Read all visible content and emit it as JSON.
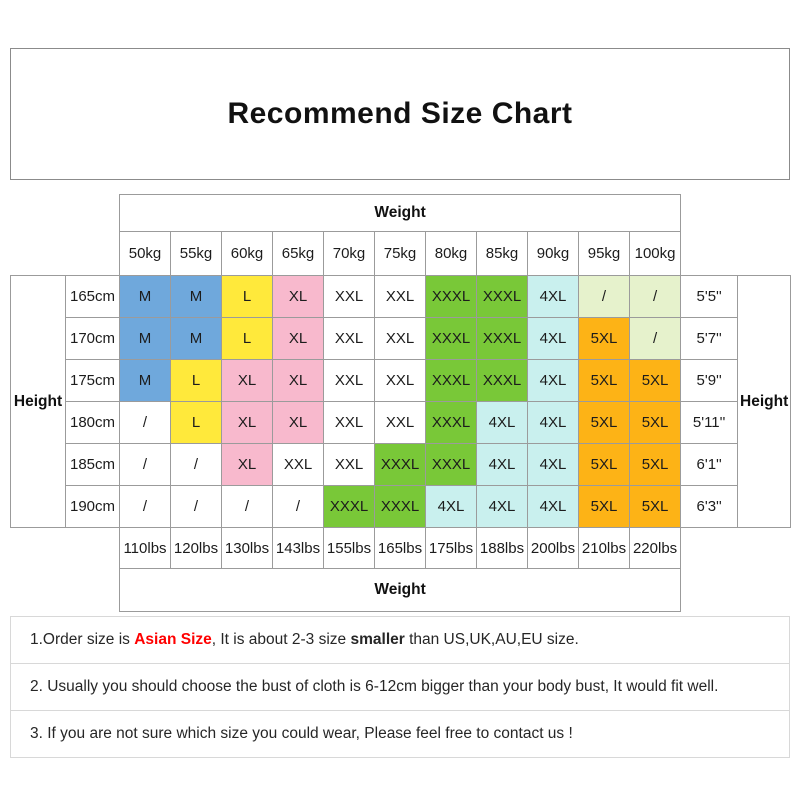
{
  "title": "Recommend Size Chart",
  "chart_data": {
    "type": "table",
    "title": "Recommend Size Chart",
    "axis_labels": {
      "top": "Weight",
      "bottom": "Weight",
      "left": "Height",
      "right": "Height"
    },
    "weight_kg": [
      "50kg",
      "55kg",
      "60kg",
      "65kg",
      "70kg",
      "75kg",
      "80kg",
      "85kg",
      "90kg",
      "95kg",
      "100kg"
    ],
    "weight_lbs": [
      "110lbs",
      "120lbs",
      "130lbs",
      "143lbs",
      "155lbs",
      "165lbs",
      "175lbs",
      "188lbs",
      "200lbs",
      "210lbs",
      "220lbs"
    ],
    "rows": [
      {
        "height_cm": "165cm",
        "height_ft": "5'5''",
        "cells": [
          [
            "M",
            "blue"
          ],
          [
            "M",
            "blue"
          ],
          [
            "L",
            "yellow"
          ],
          [
            "XL",
            "pink"
          ],
          [
            "XXL",
            "white"
          ],
          [
            "XXL",
            "white"
          ],
          [
            "XXXL",
            "green"
          ],
          [
            "XXXL",
            "green"
          ],
          [
            "4XL",
            "cyan"
          ],
          [
            "/",
            "pale"
          ],
          [
            "/",
            "pale"
          ]
        ]
      },
      {
        "height_cm": "170cm",
        "height_ft": "5'7''",
        "cells": [
          [
            "M",
            "blue"
          ],
          [
            "M",
            "blue"
          ],
          [
            "L",
            "yellow"
          ],
          [
            "XL",
            "pink"
          ],
          [
            "XXL",
            "white"
          ],
          [
            "XXL",
            "white"
          ],
          [
            "XXXL",
            "green"
          ],
          [
            "XXXL",
            "green"
          ],
          [
            "4XL",
            "cyan"
          ],
          [
            "5XL",
            "orange"
          ],
          [
            "/",
            "pale"
          ]
        ]
      },
      {
        "height_cm": "175cm",
        "height_ft": "5'9''",
        "cells": [
          [
            "M",
            "blue"
          ],
          [
            "L",
            "yellow"
          ],
          [
            "XL",
            "pink"
          ],
          [
            "XL",
            "pink"
          ],
          [
            "XXL",
            "white"
          ],
          [
            "XXL",
            "white"
          ],
          [
            "XXXL",
            "green"
          ],
          [
            "XXXL",
            "green"
          ],
          [
            "4XL",
            "cyan"
          ],
          [
            "5XL",
            "orange"
          ],
          [
            "5XL",
            "orange"
          ]
        ]
      },
      {
        "height_cm": "180cm",
        "height_ft": "5'11''",
        "cells": [
          [
            "/",
            "white"
          ],
          [
            "L",
            "yellow"
          ],
          [
            "XL",
            "pink"
          ],
          [
            "XL",
            "pink"
          ],
          [
            "XXL",
            "white"
          ],
          [
            "XXL",
            "white"
          ],
          [
            "XXXL",
            "green"
          ],
          [
            "4XL",
            "cyan"
          ],
          [
            "4XL",
            "cyan"
          ],
          [
            "5XL",
            "orange"
          ],
          [
            "5XL",
            "orange"
          ]
        ]
      },
      {
        "height_cm": "185cm",
        "height_ft": "6'1''",
        "cells": [
          [
            "/",
            "white"
          ],
          [
            "/",
            "white"
          ],
          [
            "XL",
            "pink"
          ],
          [
            "XXL",
            "white"
          ],
          [
            "XXL",
            "white"
          ],
          [
            "XXXL",
            "green"
          ],
          [
            "XXXL",
            "green"
          ],
          [
            "4XL",
            "cyan"
          ],
          [
            "4XL",
            "cyan"
          ],
          [
            "5XL",
            "orange"
          ],
          [
            "5XL",
            "orange"
          ]
        ]
      },
      {
        "height_cm": "190cm",
        "height_ft": "6'3''",
        "cells": [
          [
            "/",
            "white"
          ],
          [
            "/",
            "white"
          ],
          [
            "/",
            "white"
          ],
          [
            "/",
            "white"
          ],
          [
            "XXXL",
            "green"
          ],
          [
            "XXXL",
            "green"
          ],
          [
            "4XL",
            "cyan"
          ],
          [
            "4XL",
            "cyan"
          ],
          [
            "4XL",
            "cyan"
          ],
          [
            "5XL",
            "orange"
          ],
          [
            "5XL",
            "orange"
          ]
        ]
      }
    ],
    "palette": {
      "blue": "#6fa8dc",
      "yellow": "#ffe93b",
      "pink": "#f8b9cd",
      "white": "#ffffff",
      "green": "#79c838",
      "cyan": "#c9f0ee",
      "orange": "#fdb316",
      "pale": "#e6f2cc"
    }
  },
  "notes": {
    "note1_segments": [
      {
        "text": "1.Order size is ",
        "style": "normal"
      },
      {
        "text": "Asian Size",
        "style": "red"
      },
      {
        "text": ", It is about 2-3 size ",
        "style": "normal"
      },
      {
        "text": "smaller",
        "style": "bold"
      },
      {
        "text": " than US,UK,AU,EU size.",
        "style": "normal"
      }
    ],
    "note2": "2. Usually you should choose the bust of cloth is 6-12cm bigger than your body bust, It would fit well.",
    "note3": "3. If you are not sure which size you could wear, Please feel free to contact us !"
  },
  "colors": {
    "note_red": "#ff0000",
    "table_border": "#9b9b9b"
  }
}
